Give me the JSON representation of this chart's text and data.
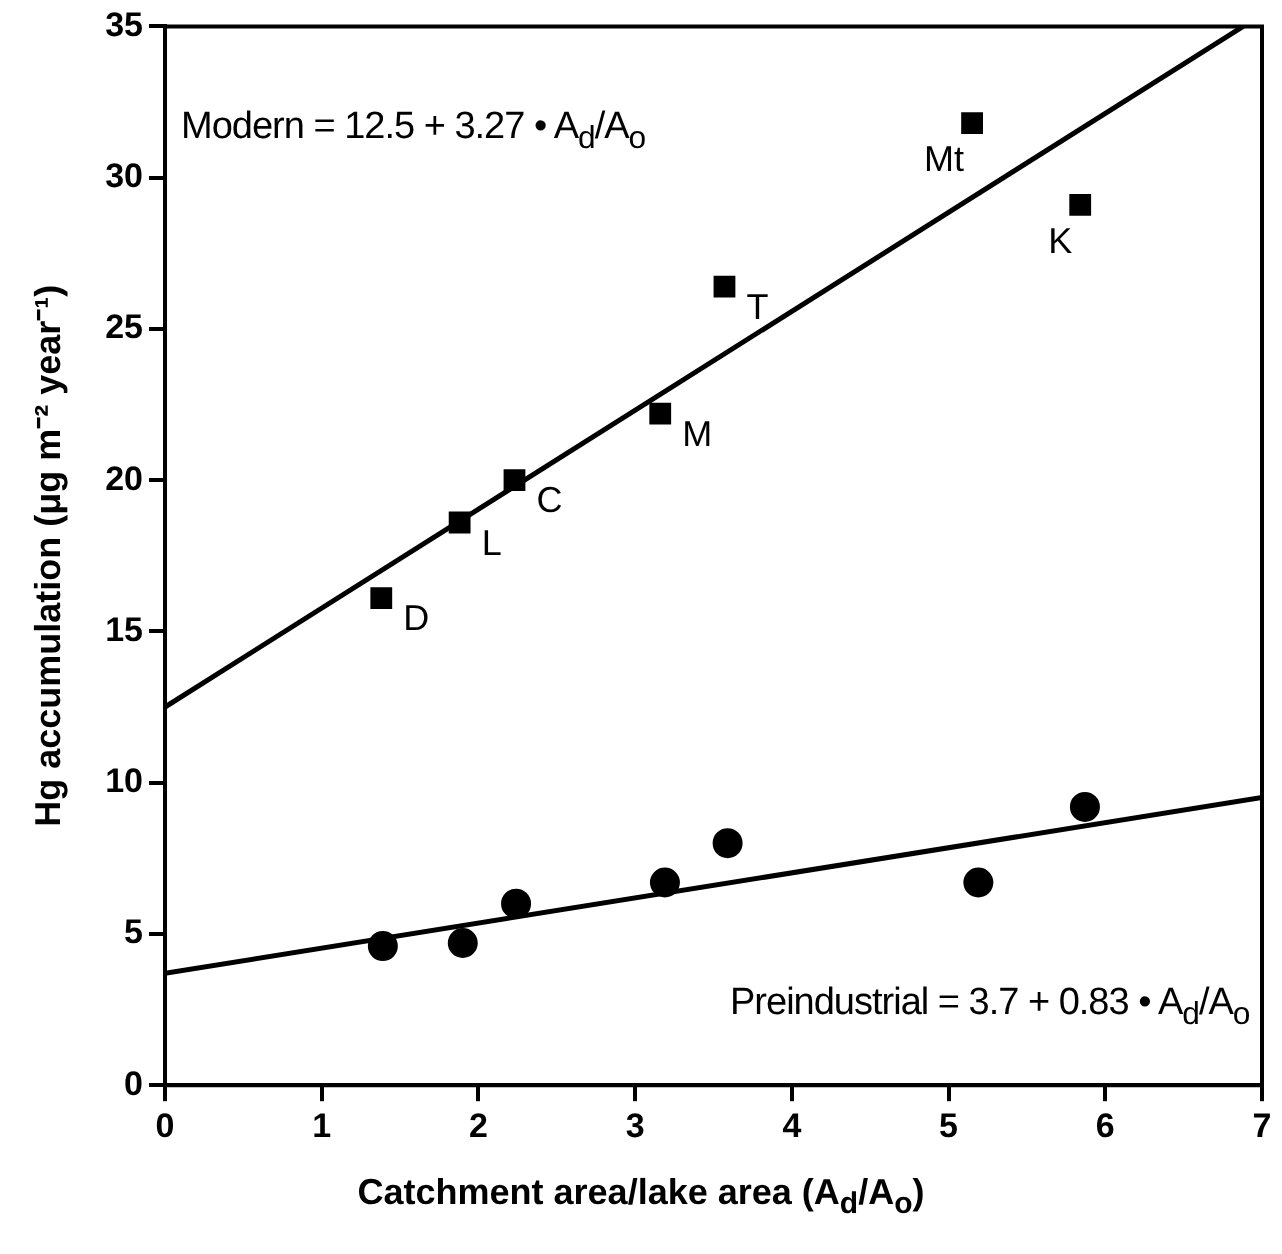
{
  "chart_data": {
    "type": "scatter",
    "xlabel": "Catchment area/lake area (A$_{d}$/A$_{o}$)",
    "ylabel": "Hg accumulation (μg m⁻² year⁻¹)",
    "xlim": [
      0,
      7
    ],
    "xticks": [
      0,
      1,
      2,
      3,
      4,
      5,
      6,
      7
    ],
    "ylim": [
      0,
      35
    ],
    "yticks": [
      0,
      5,
      10,
      15,
      20,
      25,
      30,
      35
    ],
    "grid": false,
    "legend": false,
    "series": [
      {
        "type": "scatter",
        "marker": "square",
        "color": "#000000",
        "x": [
          1.38,
          1.88,
          2.23,
          3.16,
          3.57,
          5.15,
          5.84
        ],
        "values": [
          16.1,
          18.6,
          20.0,
          22.2,
          26.4,
          31.8,
          29.1
        ]
      },
      {
        "type": "scatter",
        "marker": "circle",
        "color": "#000000",
        "x": [
          1.39,
          1.9,
          2.24,
          3.19,
          3.59,
          5.19,
          5.87
        ],
        "values": [
          4.6,
          4.7,
          6.0,
          6.7,
          8.0,
          6.7,
          9.2
        ]
      },
      {
        "type": "line",
        "color": "#000000",
        "x": [
          0,
          6.88
        ],
        "values": [
          12.5,
          35.0
        ]
      },
      {
        "type": "line",
        "color": "#000000",
        "x": [
          0,
          7
        ],
        "values": [
          3.7,
          9.51
        ]
      }
    ],
    "annotations": [
      "Modern = 12.5 + 3.27 • A$_{d}$/A$_{o}$",
      "Preindustrial = 3.7 + 0.83 • A$_{d}$/A$_{o}$",
      {
        "text": "D",
        "x": 1.38,
        "y": 16.1
      },
      {
        "text": "L",
        "x": 1.88,
        "y": 18.6
      },
      {
        "text": "C",
        "x": 2.23,
        "y": 20.0
      },
      {
        "text": "M",
        "x": 3.16,
        "y": 22.2
      },
      {
        "text": "T",
        "x": 3.57,
        "y": 26.4
      },
      {
        "text": "Mt",
        "x": 5.15,
        "y": 31.8
      },
      {
        "text": "K",
        "x": 5.84,
        "y": 29.1
      }
    ]
  }
}
